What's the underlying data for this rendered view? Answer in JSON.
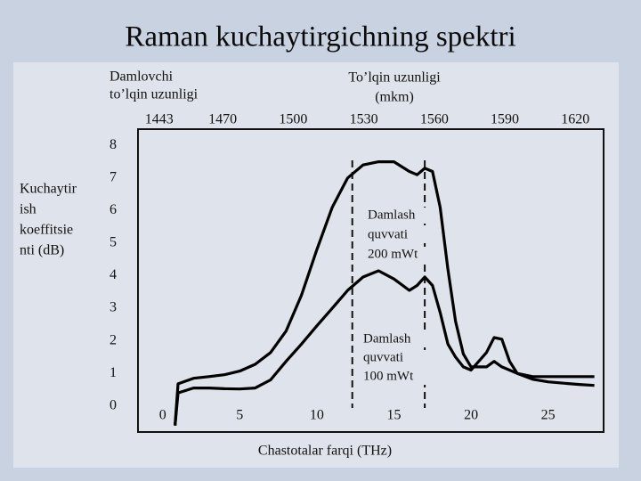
{
  "chart_data": {
    "type": "line",
    "title": "Raman kuchaytirgichning spektri",
    "x_label": "Chastotalar farqi (THz)",
    "y_label": [
      "Kuchaytir",
      "ish",
      "koeffitsie",
      "nti (dB)"
    ],
    "x2_label": [
      "To’lqin uzunligi",
      "(mkm)"
    ],
    "x2_label_left": [
      "Damlovchi",
      "to’lqin uzunligi"
    ],
    "x": [
      0.8,
      1,
      2,
      3,
      4,
      5,
      6,
      7,
      8,
      9,
      10,
      11,
      12,
      13,
      14,
      15,
      16,
      16.5,
      17,
      17.5,
      18,
      18.5,
      19,
      19.5,
      20,
      21,
      21.5,
      22,
      22.5,
      23,
      24,
      25,
      26,
      27,
      28
    ],
    "series": [
      {
        "color": "#000000",
        "values": [
          -0.6,
          0.68,
          0.85,
          0.9,
          0.96,
          1.07,
          1.28,
          1.64,
          2.3,
          3.4,
          4.8,
          6.1,
          7.0,
          7.4,
          7.5,
          7.5,
          7.2,
          7.1,
          7.3,
          7.2,
          6.1,
          4.2,
          2.6,
          1.6,
          1.2,
          1.2,
          1.37,
          1.2,
          1.1,
          1.0,
          0.9,
          0.9,
          0.9,
          0.9,
          0.9
        ]
      },
      {
        "color": "#000000",
        "values": [
          -0.6,
          0.4,
          0.55,
          0.55,
          0.53,
          0.52,
          0.55,
          0.8,
          1.37,
          1.9,
          2.46,
          3.0,
          3.55,
          3.96,
          4.15,
          3.9,
          3.55,
          3.7,
          3.96,
          3.7,
          2.87,
          1.9,
          1.5,
          1.2,
          1.1,
          1.64,
          2.1,
          2.05,
          1.37,
          1.0,
          0.82,
          0.74,
          0.7,
          0.66,
          0.63
        ]
      }
    ],
    "xlim": [
      -1.6,
      28.6
    ],
    "xticks": [
      0,
      5,
      10,
      15,
      20,
      25
    ],
    "ylim": [
      -0.8,
      8.5
    ],
    "yticks": [
      0,
      1,
      2,
      3,
      4,
      5,
      6,
      7,
      8
    ],
    "x2lim": [
      1434,
      1632
    ],
    "x2ticks": [
      1443,
      1470,
      1500,
      1530,
      1560,
      1590,
      1620
    ],
    "vlines": [
      12.3,
      17
    ],
    "annotations": [
      {
        "text": [
          "Damlash",
          "quvvati",
          "200 mWt"
        ]
      },
      {
        "text": [
          "Damlash",
          "quvvati",
          "100 mWt"
        ]
      }
    ]
  }
}
